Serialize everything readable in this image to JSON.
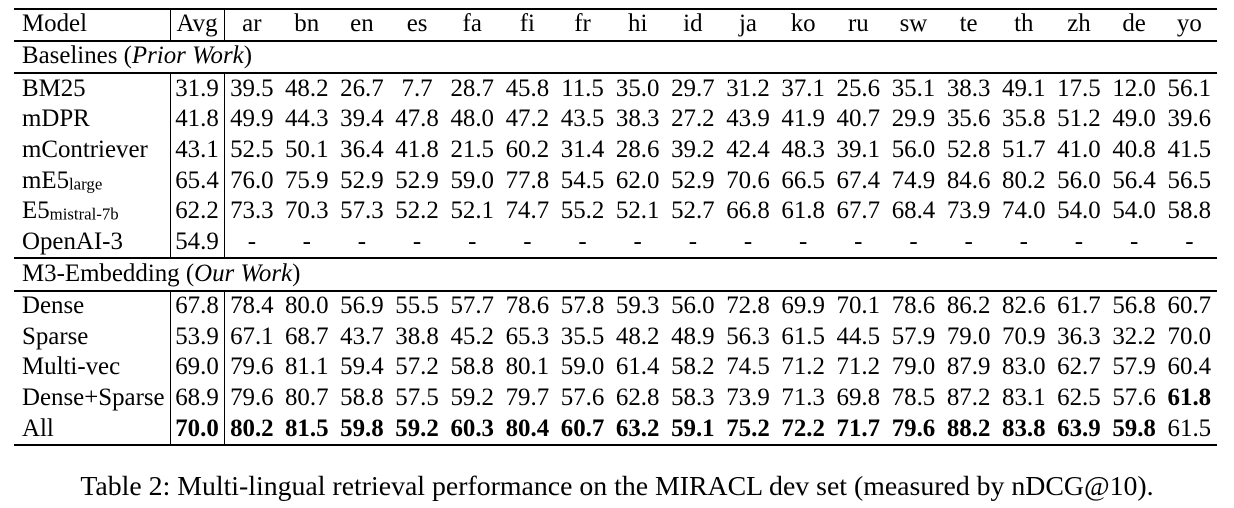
{
  "table": {
    "header": {
      "model": "Model",
      "avg": "Avg",
      "languages": [
        "ar",
        "bn",
        "en",
        "es",
        "fa",
        "fi",
        "fr",
        "hi",
        "id",
        "ja",
        "ko",
        "ru",
        "sw",
        "te",
        "th",
        "zh",
        "de",
        "yo"
      ]
    },
    "sections": [
      {
        "title_prefix": "Baselines (",
        "title_italic": "Prior Work",
        "title_suffix": ")",
        "rows": [
          {
            "model": {
              "text": "BM25",
              "sub": ""
            },
            "avg": "31.9",
            "avg_bold": false,
            "values": [
              "39.5",
              "48.2",
              "26.7",
              "7.7",
              "28.7",
              "45.8",
              "11.5",
              "35.0",
              "29.7",
              "31.2",
              "37.1",
              "25.6",
              "35.1",
              "38.3",
              "49.1",
              "17.5",
              "12.0",
              "56.1"
            ],
            "bold_indices": []
          },
          {
            "model": {
              "text": "mDPR",
              "sub": ""
            },
            "avg": "41.8",
            "avg_bold": false,
            "values": [
              "49.9",
              "44.3",
              "39.4",
              "47.8",
              "48.0",
              "47.2",
              "43.5",
              "38.3",
              "27.2",
              "43.9",
              "41.9",
              "40.7",
              "29.9",
              "35.6",
              "35.8",
              "51.2",
              "49.0",
              "39.6"
            ],
            "bold_indices": []
          },
          {
            "model": {
              "text": "mContriever",
              "sub": ""
            },
            "avg": "43.1",
            "avg_bold": false,
            "values": [
              "52.5",
              "50.1",
              "36.4",
              "41.8",
              "21.5",
              "60.2",
              "31.4",
              "28.6",
              "39.2",
              "42.4",
              "48.3",
              "39.1",
              "56.0",
              "52.8",
              "51.7",
              "41.0",
              "40.8",
              "41.5"
            ],
            "bold_indices": []
          },
          {
            "model": {
              "text": "mE5",
              "sub": "large"
            },
            "avg": "65.4",
            "avg_bold": false,
            "values": [
              "76.0",
              "75.9",
              "52.9",
              "52.9",
              "59.0",
              "77.8",
              "54.5",
              "62.0",
              "52.9",
              "70.6",
              "66.5",
              "67.4",
              "74.9",
              "84.6",
              "80.2",
              "56.0",
              "56.4",
              "56.5"
            ],
            "bold_indices": []
          },
          {
            "model": {
              "text": "E5",
              "sub": "mistral-7b"
            },
            "avg": "62.2",
            "avg_bold": false,
            "values": [
              "73.3",
              "70.3",
              "57.3",
              "52.2",
              "52.1",
              "74.7",
              "55.2",
              "52.1",
              "52.7",
              "66.8",
              "61.8",
              "67.7",
              "68.4",
              "73.9",
              "74.0",
              "54.0",
              "54.0",
              "58.8"
            ],
            "bold_indices": []
          },
          {
            "model": {
              "text": "OpenAI-3",
              "sub": ""
            },
            "avg": "54.9",
            "avg_bold": false,
            "values": [
              "-",
              "-",
              "-",
              "-",
              "-",
              "-",
              "-",
              "-",
              "-",
              "-",
              "-",
              "-",
              "-",
              "-",
              "-",
              "-",
              "-",
              "-"
            ],
            "bold_indices": []
          }
        ]
      },
      {
        "title_prefix": "M3-Embedding (",
        "title_italic": "Our Work",
        "title_suffix": ")",
        "rows": [
          {
            "model": {
              "text": "Dense",
              "sub": ""
            },
            "avg": "67.8",
            "avg_bold": false,
            "values": [
              "78.4",
              "80.0",
              "56.9",
              "55.5",
              "57.7",
              "78.6",
              "57.8",
              "59.3",
              "56.0",
              "72.8",
              "69.9",
              "70.1",
              "78.6",
              "86.2",
              "82.6",
              "61.7",
              "56.8",
              "60.7"
            ],
            "bold_indices": []
          },
          {
            "model": {
              "text": "Sparse",
              "sub": ""
            },
            "avg": "53.9",
            "avg_bold": false,
            "values": [
              "67.1",
              "68.7",
              "43.7",
              "38.8",
              "45.2",
              "65.3",
              "35.5",
              "48.2",
              "48.9",
              "56.3",
              "61.5",
              "44.5",
              "57.9",
              "79.0",
              "70.9",
              "36.3",
              "32.2",
              "70.0"
            ],
            "bold_indices": []
          },
          {
            "model": {
              "text": "Multi-vec",
              "sub": ""
            },
            "avg": "69.0",
            "avg_bold": false,
            "values": [
              "79.6",
              "81.1",
              "59.4",
              "57.2",
              "58.8",
              "80.1",
              "59.0",
              "61.4",
              "58.2",
              "74.5",
              "71.2",
              "71.2",
              "79.0",
              "87.9",
              "83.0",
              "62.7",
              "57.9",
              "60.4"
            ],
            "bold_indices": []
          },
          {
            "model": {
              "text": "Dense+Sparse",
              "sub": ""
            },
            "avg": "68.9",
            "avg_bold": false,
            "values": [
              "79.6",
              "80.7",
              "58.8",
              "57.5",
              "59.2",
              "79.7",
              "57.6",
              "62.8",
              "58.3",
              "73.9",
              "71.3",
              "69.8",
              "78.5",
              "87.2",
              "83.1",
              "62.5",
              "57.6",
              "61.8"
            ],
            "bold_indices": [
              17
            ]
          },
          {
            "model": {
              "text": "All",
              "sub": ""
            },
            "avg": "70.0",
            "avg_bold": true,
            "values": [
              "80.2",
              "81.5",
              "59.8",
              "59.2",
              "60.3",
              "80.4",
              "60.7",
              "63.2",
              "59.1",
              "75.2",
              "72.2",
              "71.7",
              "79.6",
              "88.2",
              "83.8",
              "63.9",
              "59.8",
              "61.5"
            ],
            "bold_indices": [
              0,
              1,
              2,
              3,
              4,
              5,
              6,
              7,
              8,
              9,
              10,
              11,
              12,
              13,
              14,
              15,
              16
            ]
          }
        ]
      }
    ]
  },
  "caption": "Table 2: Multi-lingual retrieval performance on the MIRACL dev set (measured by nDCG@10)."
}
